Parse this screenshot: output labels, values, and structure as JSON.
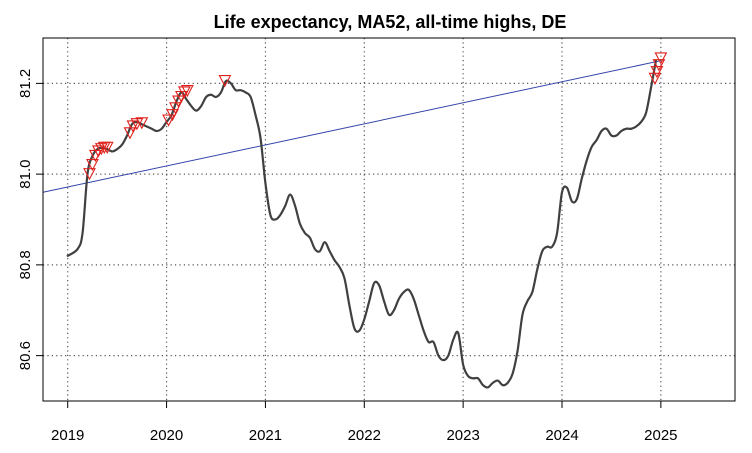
{
  "chart_data": {
    "type": "line",
    "title": "Life expectancy, MA52, all-time highs, DE",
    "xlabel": "",
    "ylabel": "",
    "xlim": [
      2018.75,
      2025.75
    ],
    "ylim": [
      80.5,
      81.3
    ],
    "x_ticks": [
      2019,
      2020,
      2021,
      2022,
      2023,
      2024,
      2025
    ],
    "x_tick_labels": [
      "2019",
      "2020",
      "2021",
      "2022",
      "2023",
      "2024",
      "2025"
    ],
    "y_ticks": [
      80.6,
      80.8,
      81.0,
      81.2
    ],
    "y_tick_labels": [
      "80.6",
      "80.8",
      "81.0",
      "81.2"
    ],
    "grid": true,
    "colors": {
      "line": "#404040",
      "trend": "#3344aa",
      "marker": "#e0201c",
      "grid": "#555555",
      "axis": "#000000"
    },
    "series": [
      {
        "kind": "line",
        "x": [
          2019.0,
          2019.1,
          2019.15,
          2019.2,
          2019.25,
          2019.3,
          2019.35,
          2019.4,
          2019.45,
          2019.5,
          2019.55,
          2019.6,
          2019.65,
          2019.7,
          2019.75,
          2019.8,
          2019.85,
          2019.9,
          2019.95,
          2020.0,
          2020.05,
          2020.1,
          2020.15,
          2020.2,
          2020.25,
          2020.3,
          2020.35,
          2020.4,
          2020.45,
          2020.5,
          2020.55,
          2020.6,
          2020.65,
          2020.7,
          2020.75,
          2020.8,
          2020.85,
          2020.9,
          2020.95,
          2021.0,
          2021.05,
          2021.1,
          2021.15,
          2021.2,
          2021.25,
          2021.3,
          2021.35,
          2021.4,
          2021.45,
          2021.5,
          2021.55,
          2021.6,
          2021.65,
          2021.7,
          2021.75,
          2021.8,
          2021.85,
          2021.9,
          2021.95,
          2022.0,
          2022.05,
          2022.1,
          2022.15,
          2022.2,
          2022.25,
          2022.3,
          2022.35,
          2022.4,
          2022.45,
          2022.5,
          2022.55,
          2022.6,
          2022.65,
          2022.7,
          2022.75,
          2022.8,
          2022.85,
          2022.9,
          2022.95,
          2023.0,
          2023.05,
          2023.1,
          2023.15,
          2023.2,
          2023.25,
          2023.3,
          2023.35,
          2023.4,
          2023.45,
          2023.5,
          2023.55,
          2023.6,
          2023.65,
          2023.7,
          2023.75,
          2023.8,
          2023.85,
          2023.9,
          2023.95,
          2024.0,
          2024.05,
          2024.1,
          2024.15,
          2024.2,
          2024.25,
          2024.3,
          2024.35,
          2024.4,
          2024.45,
          2024.5,
          2024.55,
          2024.6,
          2024.65,
          2024.7,
          2024.75,
          2024.8,
          2024.85,
          2024.9,
          2024.95
        ],
        "y": [
          80.82,
          80.835,
          80.87,
          81.0,
          81.04,
          81.055,
          81.058,
          81.055,
          81.05,
          81.055,
          81.065,
          81.085,
          81.11,
          81.115,
          81.11,
          81.105,
          81.1,
          81.095,
          81.1,
          81.115,
          81.13,
          81.16,
          81.18,
          81.165,
          81.15,
          81.14,
          81.15,
          81.17,
          81.175,
          81.17,
          81.18,
          81.205,
          81.2,
          81.185,
          81.185,
          81.18,
          81.17,
          81.13,
          81.08,
          80.98,
          80.91,
          80.9,
          80.91,
          80.93,
          80.955,
          80.93,
          80.89,
          80.87,
          80.86,
          80.835,
          80.83,
          80.85,
          80.83,
          80.81,
          80.795,
          80.77,
          80.71,
          80.66,
          80.655,
          80.68,
          80.72,
          80.76,
          80.755,
          80.72,
          80.69,
          80.7,
          80.725,
          80.74,
          80.745,
          80.725,
          80.69,
          80.655,
          80.63,
          80.63,
          80.6,
          80.59,
          80.6,
          80.635,
          80.65,
          80.58,
          80.555,
          80.55,
          80.55,
          80.535,
          80.53,
          80.54,
          80.545,
          80.535,
          80.54,
          80.56,
          80.61,
          80.69,
          80.72,
          80.74,
          80.79,
          80.83,
          80.84,
          80.84,
          80.87,
          80.96,
          80.97,
          80.94,
          80.945,
          80.99,
          81.03,
          81.06,
          81.075,
          81.095,
          81.1,
          81.085,
          81.085,
          81.095,
          81.1,
          81.1,
          81.105,
          81.115,
          81.135,
          81.19,
          81.25
        ]
      },
      {
        "kind": "trend",
        "x": [
          2018.75,
          2025.0
        ],
        "y": [
          80.96,
          81.25
        ]
      },
      {
        "kind": "markers",
        "x": [
          2019.22,
          2019.25,
          2019.28,
          2019.31,
          2019.34,
          2019.37,
          2019.4,
          2019.63,
          2019.66,
          2019.7,
          2019.75,
          2020.02,
          2020.06,
          2020.09,
          2020.12,
          2020.15,
          2020.18,
          2020.21,
          2020.59,
          2024.94,
          2024.96,
          2024.98,
          2025.0
        ],
        "y": [
          81.0,
          81.02,
          81.04,
          81.05,
          81.055,
          81.058,
          81.058,
          81.09,
          81.105,
          81.11,
          81.112,
          81.118,
          81.13,
          81.145,
          81.16,
          81.17,
          81.18,
          81.183,
          81.205,
          81.21,
          81.225,
          81.24,
          81.255
        ]
      }
    ]
  }
}
